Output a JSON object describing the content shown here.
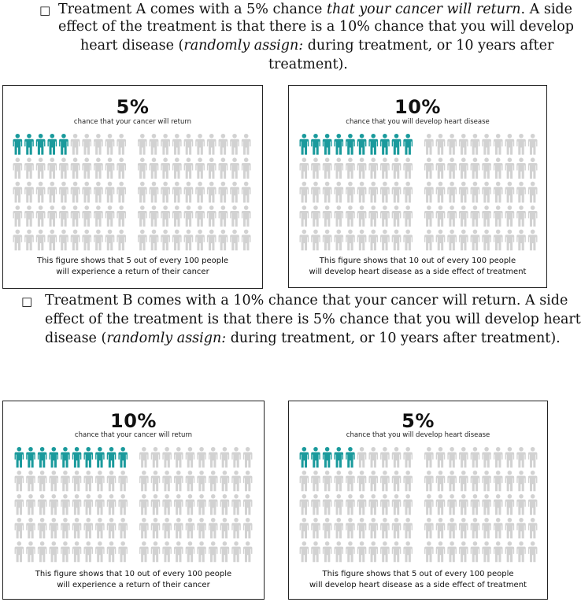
{
  "treatment_a": {
    "checkbox": "□",
    "lines": [
      [
        {
          "t": "Treatment A comes with a 5% chance ",
          "i": false
        },
        {
          "t": "that your cancer will return",
          "i": true
        },
        {
          "t": ". A side",
          "i": false
        }
      ],
      [
        {
          "t": "effect of the treatment is that there is a 10% chance that you will develop",
          "i": false
        }
      ],
      [
        {
          "t": "heart disease (",
          "i": false
        },
        {
          "t": "randomly assign:",
          "i": true
        },
        {
          "t": " during treatment, or 10 years after",
          "i": false
        }
      ],
      [
        {
          "t": "treatment).",
          "i": false
        }
      ]
    ]
  },
  "treatment_b": {
    "checkbox": "□",
    "lines": [
      [
        {
          "t": "Treatment B comes with a 10% chance that your cancer will return. A side",
          "i": false
        }
      ],
      [
        {
          "t": "effect of the treatment is that there is 5% chance that you will develop heart",
          "i": false
        }
      ],
      [
        {
          "t": "disease (",
          "i": false
        },
        {
          "t": "randomly assign:",
          "i": true
        },
        {
          "t": " during treatment, or 10 years after treatment).",
          "i": false
        }
      ]
    ]
  },
  "panels": [
    {
      "percent": "5%",
      "subtitle": "chance that your cancer will return",
      "highlighted": 5,
      "total": 100,
      "caption": [
        "This figure shows that 5 out of every 100 people",
        "will experience a return of their cancer"
      ]
    },
    {
      "percent": "10%",
      "subtitle": "chance that you will develop heart disease",
      "highlighted": 10,
      "total": 100,
      "caption": [
        "This figure shows that 10 out of every 100 people",
        "will develop heart disease as a side effect of treatment"
      ]
    },
    {
      "percent": "10%",
      "subtitle": "chance that your cancer will return",
      "highlighted": 10,
      "total": 100,
      "caption": [
        "This figure shows that 10 out of every 100 people",
        "will experience a return of their cancer"
      ]
    },
    {
      "percent": "5%",
      "subtitle": "chance that you will develop heart disease",
      "highlighted": 5,
      "total": 100,
      "caption": [
        "This figure shows that 5 out of every 100 people",
        "will develop heart disease as a side effect of treatment"
      ]
    }
  ],
  "colors": {
    "highlight": "#1a9a9c",
    "neutral": "#d2d2d2"
  }
}
